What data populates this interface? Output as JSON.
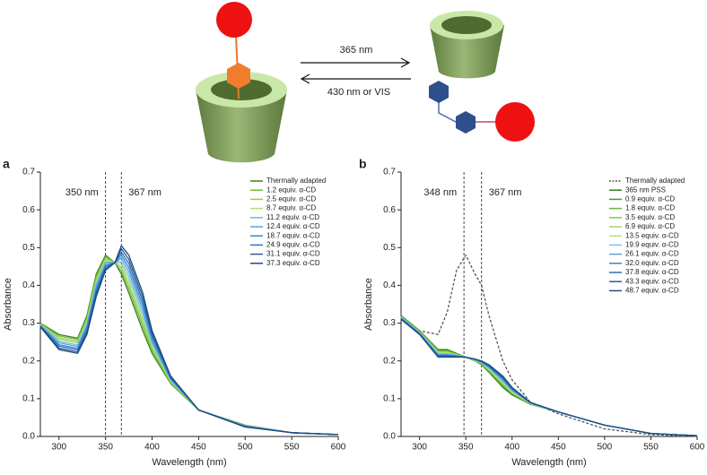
{
  "scheme": {
    "forward": "365 nm",
    "reverse": "430 nm or VIS"
  },
  "chart_data": [
    {
      "type": "line",
      "panel": "a",
      "x_label": "Wavelength (nm)",
      "y_label": "Absorbance",
      "x": [
        280,
        300,
        320,
        330,
        340,
        350,
        360,
        367,
        375,
        390,
        400,
        420,
        450,
        500,
        550,
        600
      ],
      "xlim": [
        280,
        600
      ],
      "xticks": [
        300,
        350,
        400,
        450,
        500,
        550,
        600
      ],
      "ylim": [
        0,
        0.7
      ],
      "yticks": [
        {
          "value": 0,
          "label": "0.0"
        },
        0.1,
        0.2,
        0.3,
        0.4,
        0.5,
        0.6,
        0.7
      ],
      "vlines": [
        {
          "x": 350,
          "label": "350 nm"
        },
        {
          "x": 367,
          "label": "367 nm"
        }
      ],
      "series": [
        {
          "name": "Thermally adapted",
          "color": "#3f7f22",
          "values": [
            0.3,
            0.27,
            0.26,
            0.32,
            0.43,
            0.48,
            0.46,
            0.43,
            0.38,
            0.28,
            0.22,
            0.14,
            0.07,
            0.03,
            0.01,
            0.005
          ]
        },
        {
          "name": "1.2 equiv. α-CD",
          "color": "#6cbf3a",
          "values": [
            0.299,
            0.266,
            0.256,
            0.314,
            0.423,
            0.476,
            0.46,
            0.438,
            0.391,
            0.291,
            0.227,
            0.142,
            0.07,
            0.029,
            0.01,
            0.005
          ]
        },
        {
          "name": "2.5 equiv. α-CD",
          "color": "#8fd14f",
          "values": [
            0.298,
            0.261,
            0.251,
            0.309,
            0.417,
            0.471,
            0.46,
            0.447,
            0.402,
            0.302,
            0.233,
            0.144,
            0.07,
            0.029,
            0.01,
            0.005
          ]
        },
        {
          "name": "8.7 equiv. α-CD",
          "color": "#b0dc72",
          "values": [
            0.297,
            0.257,
            0.247,
            0.303,
            0.41,
            0.467,
            0.46,
            0.455,
            0.413,
            0.313,
            0.24,
            0.147,
            0.07,
            0.028,
            0.01,
            0.005
          ]
        },
        {
          "name": "11.2 equiv. α-CD",
          "color": "#6fb9ea",
          "values": [
            0.296,
            0.252,
            0.242,
            0.298,
            0.403,
            0.462,
            0.46,
            0.463,
            0.424,
            0.324,
            0.247,
            0.149,
            0.07,
            0.028,
            0.01,
            0.005
          ]
        },
        {
          "name": "12.4 equiv. α-CD",
          "color": "#55a2de",
          "values": [
            0.294,
            0.248,
            0.238,
            0.292,
            0.397,
            0.458,
            0.46,
            0.472,
            0.436,
            0.336,
            0.253,
            0.151,
            0.07,
            0.027,
            0.01,
            0.005
          ]
        },
        {
          "name": "18.7 equiv. α-CD",
          "color": "#3f88cc",
          "values": [
            0.293,
            0.243,
            0.233,
            0.287,
            0.39,
            0.453,
            0.46,
            0.48,
            0.447,
            0.347,
            0.26,
            0.153,
            0.07,
            0.027,
            0.01,
            0.005
          ]
        },
        {
          "name": "24.9 equiv. α-CD",
          "color": "#2f70b5",
          "values": [
            0.292,
            0.239,
            0.229,
            0.281,
            0.383,
            0.449,
            0.46,
            0.488,
            0.458,
            0.358,
            0.267,
            0.156,
            0.07,
            0.026,
            0.01,
            0.005
          ]
        },
        {
          "name": "31.1 equiv. α-CD",
          "color": "#275c9c",
          "values": [
            0.291,
            0.234,
            0.224,
            0.276,
            0.377,
            0.444,
            0.46,
            0.497,
            0.469,
            0.369,
            0.273,
            0.158,
            0.07,
            0.026,
            0.01,
            0.005
          ]
        },
        {
          "name": "37.3 equiv. α-CD",
          "color": "#1d4a80",
          "values": [
            0.29,
            0.23,
            0.22,
            0.27,
            0.37,
            0.44,
            0.46,
            0.505,
            0.48,
            0.38,
            0.28,
            0.16,
            0.07,
            0.025,
            0.01,
            0.005
          ]
        }
      ]
    },
    {
      "type": "line",
      "panel": "b",
      "x_label": "Wavelength (nm)",
      "y_label": "Absorbance",
      "x": [
        280,
        300,
        320,
        330,
        340,
        350,
        360,
        367,
        375,
        390,
        400,
        420,
        450,
        500,
        550,
        600
      ],
      "xlim": [
        280,
        600
      ],
      "xticks": [
        300,
        350,
        400,
        450,
        500,
        550,
        600
      ],
      "ylim": [
        0,
        0.7
      ],
      "yticks": [
        {
          "value": 0,
          "label": "0.0"
        },
        0.1,
        0.2,
        0.3,
        0.4,
        0.5,
        0.6,
        0.7
      ],
      "vlines": [
        {
          "x": 348,
          "label": "348 nm"
        },
        {
          "x": 367,
          "label": "367 nm"
        }
      ],
      "series": [
        {
          "name": "Thermally adapted",
          "color": "#555555",
          "dash": true,
          "values": [
            0.32,
            0.28,
            0.27,
            0.33,
            0.44,
            0.48,
            0.43,
            0.4,
            0.32,
            0.2,
            0.15,
            0.09,
            0.06,
            0.02,
            0.005,
            0
          ]
        },
        {
          "name": "365 nm PSS",
          "color": "#2e7d1e",
          "values": [
            0.32,
            0.28,
            0.23,
            0.23,
            0.22,
            0.21,
            0.2,
            0.19,
            0.17,
            0.13,
            0.11,
            0.085,
            0.065,
            0.03,
            0.008,
            0.002
          ]
        },
        {
          "name": "0.9 equiv. α-CD",
          "color": "#4a9a2a",
          "values": [
            0.319,
            0.279,
            0.228,
            0.228,
            0.219,
            0.21,
            0.2,
            0.191,
            0.172,
            0.133,
            0.112,
            0.085,
            0.065,
            0.03,
            0.008,
            0.002
          ]
        },
        {
          "name": "1.8 equiv. α-CD",
          "color": "#6ab43a",
          "values": [
            0.318,
            0.278,
            0.226,
            0.226,
            0.218,
            0.21,
            0.201,
            0.192,
            0.174,
            0.135,
            0.114,
            0.086,
            0.065,
            0.03,
            0.008,
            0.002
          ]
        },
        {
          "name": "3.5 equiv. α-CD",
          "color": "#8cc84b",
          "values": [
            0.317,
            0.277,
            0.225,
            0.225,
            0.217,
            0.21,
            0.201,
            0.193,
            0.175,
            0.138,
            0.115,
            0.086,
            0.065,
            0.03,
            0.008,
            0.002
          ]
        },
        {
          "name": "6.9 equiv. α-CD",
          "color": "#a3d46a",
          "values": [
            0.316,
            0.276,
            0.223,
            0.223,
            0.216,
            0.21,
            0.202,
            0.194,
            0.177,
            0.141,
            0.117,
            0.087,
            0.065,
            0.03,
            0.008,
            0.002
          ]
        },
        {
          "name": "13.5 equiv. α-CD",
          "color": "#b8e07e",
          "values": [
            0.315,
            0.275,
            0.221,
            0.221,
            0.215,
            0.21,
            0.202,
            0.195,
            0.179,
            0.144,
            0.119,
            0.087,
            0.065,
            0.03,
            0.008,
            0.002
          ]
        },
        {
          "name": "19.9 equiv. α-CD",
          "color": "#7cc2ee",
          "values": [
            0.315,
            0.275,
            0.219,
            0.219,
            0.215,
            0.21,
            0.203,
            0.195,
            0.181,
            0.146,
            0.121,
            0.088,
            0.065,
            0.03,
            0.008,
            0.002
          ]
        },
        {
          "name": "26.1 equiv. α-CD",
          "color": "#55a6e2",
          "values": [
            0.314,
            0.274,
            0.217,
            0.217,
            0.214,
            0.21,
            0.203,
            0.196,
            0.183,
            0.149,
            0.123,
            0.088,
            0.065,
            0.03,
            0.008,
            0.002
          ]
        },
        {
          "name": "32.0 equiv. α-CD",
          "color": "#3a86cc",
          "values": [
            0.313,
            0.273,
            0.215,
            0.215,
            0.213,
            0.21,
            0.204,
            0.197,
            0.185,
            0.152,
            0.125,
            0.089,
            0.065,
            0.03,
            0.008,
            0.002
          ]
        },
        {
          "name": "37.8 equiv. α-CD",
          "color": "#2f70b5",
          "values": [
            0.312,
            0.272,
            0.214,
            0.214,
            0.212,
            0.21,
            0.204,
            0.198,
            0.186,
            0.155,
            0.126,
            0.089,
            0.065,
            0.03,
            0.008,
            0.002
          ]
        },
        {
          "name": "43.3 equiv. α-CD",
          "color": "#285d9a",
          "values": [
            0.311,
            0.271,
            0.212,
            0.212,
            0.211,
            0.21,
            0.205,
            0.199,
            0.188,
            0.157,
            0.128,
            0.09,
            0.065,
            0.03,
            0.008,
            0.002
          ]
        },
        {
          "name": "48.7 equiv. α-CD",
          "color": "#234f85",
          "values": [
            0.31,
            0.27,
            0.21,
            0.21,
            0.21,
            0.21,
            0.205,
            0.2,
            0.19,
            0.16,
            0.13,
            0.09,
            0.065,
            0.03,
            0.008,
            0.002
          ]
        }
      ]
    }
  ]
}
